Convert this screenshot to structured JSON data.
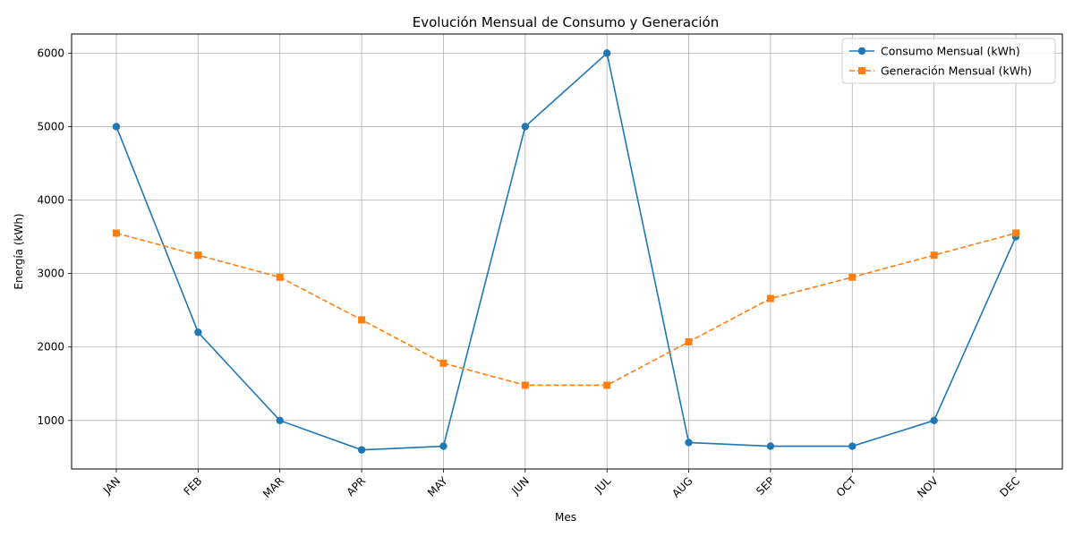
{
  "chart_data": {
    "type": "line",
    "title": "Evolución Mensual de Consumo y Generación",
    "xlabel": "Mes",
    "ylabel": "Energía (kWh)",
    "categories": [
      "JAN",
      "FEB",
      "MAR",
      "APR",
      "MAY",
      "JUN",
      "JUL",
      "AUG",
      "SEP",
      "OCT",
      "NOV",
      "DEC"
    ],
    "ylim": [
      340,
      6260
    ],
    "yticks": [
      1000,
      2000,
      3000,
      4000,
      5000,
      6000
    ],
    "grid": true,
    "legend_position": "top-right",
    "series": [
      {
        "name": "Consumo Mensual (kWh)",
        "color": "#1f77b4",
        "marker": "circle",
        "linestyle": "solid",
        "values": [
          5000,
          2200,
          1000,
          600,
          650,
          5000,
          6000,
          700,
          650,
          650,
          1000,
          3500
        ]
      },
      {
        "name": "Generación Mensual (kWh)",
        "color": "#ff7f0e",
        "marker": "square",
        "linestyle": "dashed",
        "values": [
          3550,
          3250,
          2950,
          2370,
          1780,
          1480,
          1480,
          2070,
          2660,
          2950,
          3250,
          3550
        ]
      }
    ]
  }
}
